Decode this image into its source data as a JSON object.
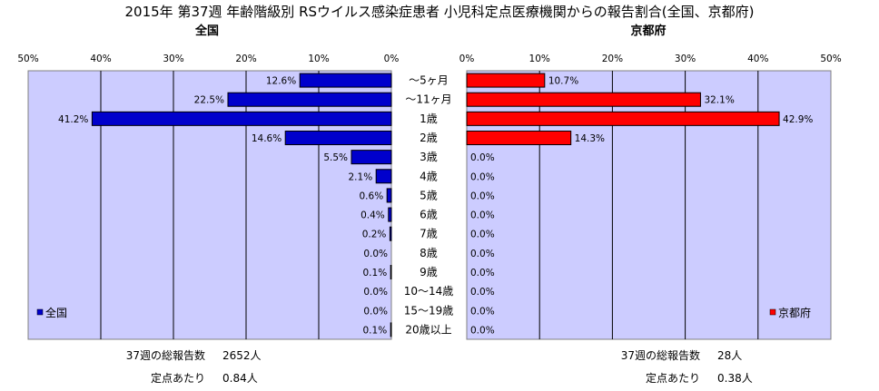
{
  "chart_data": [
    {
      "type": "bar",
      "orientation": "horizontal",
      "subtitle": "全国",
      "title": "2015年 第37週 年齢階級別 RSウイルス感染症患者 小児科定点医療機関からの報告割合(全国、京都府)",
      "categories": [
        "～5ヶ月",
        "～11ヶ月",
        "1歳",
        "2歳",
        "3歳",
        "4歳",
        "5歳",
        "6歳",
        "7歳",
        "8歳",
        "9歳",
        "10～14歳",
        "15～19歳",
        "20歳以上"
      ],
      "series": [
        {
          "name": "全国",
          "values": [
            12.6,
            22.5,
            41.2,
            14.6,
            5.5,
            2.1,
            0.6,
            0.4,
            0.2,
            0.0,
            0.1,
            0.0,
            0.0,
            0.1
          ],
          "color": "#0000cc"
        }
      ],
      "xlim": [
        0,
        50
      ],
      "x_ticks": [
        "50%",
        "40%",
        "30%",
        "20%",
        "10%",
        "0%"
      ],
      "value_labels": [
        "12.6%",
        "22.5%",
        "41.2%",
        "14.6%",
        "5.5%",
        "2.1%",
        "0.6%",
        "0.4%",
        "0.2%",
        "0.0%",
        "0.1%",
        "0.0%",
        "0.0%",
        "0.1%"
      ],
      "direction": "reversed",
      "legend_position": "bottom-left",
      "grid": true
    },
    {
      "type": "bar",
      "orientation": "horizontal",
      "subtitle": "京都府",
      "categories": [
        "～5ヶ月",
        "～11ヶ月",
        "1歳",
        "2歳",
        "3歳",
        "4歳",
        "5歳",
        "6歳",
        "7歳",
        "8歳",
        "9歳",
        "10～14歳",
        "15～19歳",
        "20歳以上"
      ],
      "series": [
        {
          "name": "京都府",
          "values": [
            10.7,
            32.1,
            42.9,
            14.3,
            0.0,
            0.0,
            0.0,
            0.0,
            0.0,
            0.0,
            0.0,
            0.0,
            0.0,
            0.0
          ],
          "color": "#ff0000"
        }
      ],
      "xlim": [
        0,
        50
      ],
      "x_ticks": [
        "0%",
        "10%",
        "20%",
        "30%",
        "40%",
        "50%"
      ],
      "value_labels": [
        "10.7%",
        "32.1%",
        "42.9%",
        "14.3%",
        "0.0%",
        "0.0%",
        "0.0%",
        "0.0%",
        "0.0%",
        "0.0%",
        "0.0%",
        "0.0%",
        "0.0%",
        "0.0%"
      ],
      "legend_position": "bottom-right",
      "grid": true
    }
  ],
  "footer": {
    "left": [
      {
        "label": "37週の総報告数",
        "value": "2652人"
      },
      {
        "label": "定点あたり",
        "value": "0.84人"
      }
    ],
    "right": [
      {
        "label": "37週の総報告数",
        "value": "28人"
      },
      {
        "label": "定点あたり",
        "value": "0.38人"
      }
    ]
  },
  "colors": {
    "plot_bg": "#ccccff",
    "grid": "#000000"
  }
}
